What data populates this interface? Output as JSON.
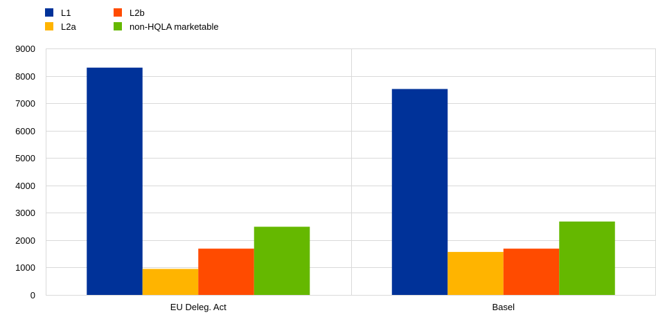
{
  "legend": {
    "items": [
      {
        "label": "L1",
        "color": "#003299"
      },
      {
        "label": "L2b",
        "color": "#FF4B00"
      },
      {
        "label": "L2a",
        "color": "#FFB400"
      },
      {
        "label": "non-HQLA marketable",
        "color": "#65B800"
      }
    ]
  },
  "chart_data": {
    "type": "bar",
    "categories": [
      "EU Deleg. Act",
      "Basel"
    ],
    "series": [
      {
        "name": "L1",
        "color": "#003299",
        "values": [
          8300,
          7520
        ]
      },
      {
        "name": "L2a",
        "color": "#FFB400",
        "values": [
          950,
          1570
        ]
      },
      {
        "name": "L2b",
        "color": "#FF4B00",
        "values": [
          1690,
          1690
        ]
      },
      {
        "name": "non-HQLA marketable",
        "color": "#65B800",
        "values": [
          2490,
          2680
        ]
      }
    ],
    "ylim": [
      0,
      9000
    ],
    "yticks": [
      "0",
      "1000",
      "2000",
      "3000",
      "4000",
      "5000",
      "6000",
      "7000",
      "8000",
      "9000"
    ],
    "title": "",
    "xlabel": "",
    "ylabel": "",
    "grid": true,
    "legend_position": "top-left"
  }
}
